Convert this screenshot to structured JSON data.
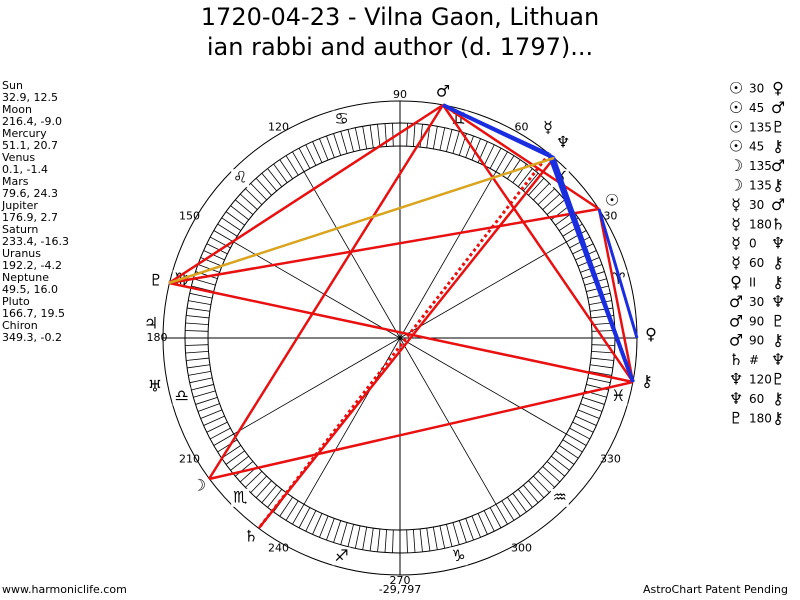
{
  "title": [
    "1720-04-23 - Vilna Gaon, Lithuan",
    "ian rabbi and author (d. 1797)..."
  ],
  "planets": [
    {
      "name": "Sun",
      "position": "32.9, 12.5",
      "glyph": "☉"
    },
    {
      "name": "Moon",
      "position": "216.4, -9.0",
      "glyph": "☽"
    },
    {
      "name": "Mercury",
      "position": "51.1, 20.7",
      "glyph": "☿"
    },
    {
      "name": "Venus",
      "position": "0.1, -1.4",
      "glyph": "♀"
    },
    {
      "name": "Mars",
      "position": "79.6, 24.3",
      "glyph": "♂"
    },
    {
      "name": "Jupiter",
      "position": "176.9, 2.7",
      "glyph": "♃"
    },
    {
      "name": "Saturn",
      "position": "233.4, -16.3",
      "glyph": "♄"
    },
    {
      "name": "Uranus",
      "position": "192.2, -4.2",
      "glyph": "♅"
    },
    {
      "name": "Neptune",
      "position": "49.5, 16.0",
      "glyph": "♆"
    },
    {
      "name": "Pluto",
      "position": "166.7, 19.5",
      "glyph": "♇"
    },
    {
      "name": "Chiron",
      "position": "349.3, -0.2",
      "glyph": "⚷"
    }
  ],
  "aspects": [
    [
      "☉",
      "30",
      "♀"
    ],
    [
      "☉",
      "45",
      "♂"
    ],
    [
      "☉",
      "135",
      "♇"
    ],
    [
      "☉",
      "45",
      "⚷"
    ],
    [
      "☽",
      "135",
      "♂"
    ],
    [
      "☽",
      "135",
      "⚷"
    ],
    [
      "☿",
      "30",
      "♂"
    ],
    [
      "☿",
      "180",
      "♄"
    ],
    [
      "☿",
      "0",
      "♆"
    ],
    [
      "☿",
      "60",
      "⚷"
    ],
    [
      "♀",
      "II",
      "⚷"
    ],
    [
      "♂",
      "30",
      "♆"
    ],
    [
      "♂",
      "90",
      "♇"
    ],
    [
      "♂",
      "90",
      "⚷"
    ],
    [
      "♄",
      "#",
      "♆"
    ],
    [
      "♆",
      "120",
      "♇"
    ],
    [
      "♆",
      "60",
      "⚷"
    ],
    [
      "♇",
      "180",
      "⚷"
    ]
  ],
  "degree_labels": [
    "30",
    "60",
    "90",
    "120",
    "150",
    "180",
    "210",
    "240",
    "270",
    "300",
    "330"
  ],
  "zodiac": [
    "♈",
    "♉",
    "♊",
    "♋",
    "♌",
    "♍",
    "♎",
    "♏",
    "♐",
    "♑",
    "♒",
    "♓"
  ],
  "footer": {
    "left": "www.harmoniclife.com",
    "center": "-29,797",
    "right": "AstroChart Patent Pending"
  }
}
